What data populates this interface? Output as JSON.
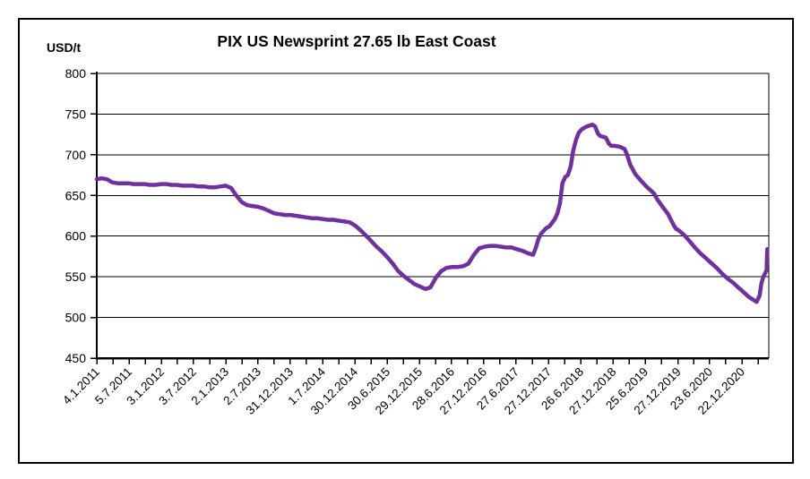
{
  "window": {
    "background": "#ffffff",
    "frame_border_color": "#000000"
  },
  "chart_data": {
    "type": "line",
    "title": "PIX US Newsprint 27.65 lb East Coast",
    "y_unit": "USD/t",
    "xlabel": "",
    "ylabel": "USD/t",
    "ylim": [
      450,
      800
    ],
    "y_ticks": [
      800,
      750,
      700,
      650,
      600,
      550,
      500,
      450
    ],
    "x_tick_labels": [
      "4.1.2011",
      "5.7.2011",
      "3.1.2012",
      "3.7.2012",
      "2.1.2013",
      "2.7.2013",
      "31.12.2013",
      "1.7.2014",
      "30.12.2014",
      "30.6.2015",
      "29.12.2015",
      "28.6.2016",
      "27.12.2016",
      "27.6.2017",
      "27.12.2017",
      "26.6.2018",
      "27.12.2018",
      "25.6.2019",
      "27.12.2019",
      "23.6.2020",
      "22.12.2020"
    ],
    "grid": "horizontal",
    "legend": "none",
    "line_color": "#7030A0",
    "axis_color": "#000000",
    "series": [
      {
        "name": "PIX US Newsprint 27.65 lb East Coast",
        "points": [
          [
            "4.1.2011",
            670
          ],
          [
            "1.2.2011",
            671
          ],
          [
            "1.3.2011",
            670
          ],
          [
            "1.4.2011",
            666
          ],
          [
            "1.5.2011",
            665
          ],
          [
            "1.6.2011",
            665
          ],
          [
            "1.7.2011",
            665
          ],
          [
            "1.8.2011",
            664
          ],
          [
            "1.9.2011",
            664
          ],
          [
            "1.10.2011",
            664
          ],
          [
            "1.11.2011",
            663
          ],
          [
            "1.12.2011",
            663
          ],
          [
            "1.1.2012",
            664
          ],
          [
            "1.2.2012",
            664
          ],
          [
            "1.3.2012",
            663
          ],
          [
            "1.4.2012",
            663
          ],
          [
            "1.5.2012",
            662
          ],
          [
            "1.6.2012",
            662
          ],
          [
            "1.7.2012",
            662
          ],
          [
            "1.8.2012",
            661
          ],
          [
            "1.9.2012",
            661
          ],
          [
            "1.10.2012",
            660
          ],
          [
            "1.11.2012",
            660
          ],
          [
            "1.12.2012",
            661
          ],
          [
            "1.1.2013",
            662
          ],
          [
            "1.2.2013",
            659
          ],
          [
            "1.3.2013",
            650
          ],
          [
            "1.4.2013",
            642
          ],
          [
            "1.5.2013",
            638
          ],
          [
            "1.6.2013",
            637
          ],
          [
            "1.7.2013",
            636
          ],
          [
            "1.8.2013",
            634
          ],
          [
            "1.9.2013",
            631
          ],
          [
            "1.10.2013",
            628
          ],
          [
            "1.11.2013",
            627
          ],
          [
            "1.12.2013",
            626
          ],
          [
            "1.1.2014",
            626
          ],
          [
            "1.2.2014",
            625
          ],
          [
            "1.3.2014",
            624
          ],
          [
            "1.4.2014",
            623
          ],
          [
            "1.5.2014",
            622
          ],
          [
            "1.6.2014",
            622
          ],
          [
            "1.7.2014",
            621
          ],
          [
            "1.8.2014",
            620
          ],
          [
            "1.9.2014",
            620
          ],
          [
            "1.10.2014",
            619
          ],
          [
            "1.11.2014",
            618
          ],
          [
            "1.12.2014",
            617
          ],
          [
            "1.1.2015",
            613
          ],
          [
            "1.2.2015",
            607
          ],
          [
            "1.3.2015",
            601
          ],
          [
            "1.4.2015",
            594
          ],
          [
            "1.5.2015",
            587
          ],
          [
            "1.6.2015",
            581
          ],
          [
            "1.7.2015",
            574
          ],
          [
            "1.8.2015",
            566
          ],
          [
            "1.9.2015",
            557
          ],
          [
            "1.10.2015",
            551
          ],
          [
            "1.11.2015",
            546
          ],
          [
            "1.12.2015",
            541
          ],
          [
            "1.1.2016",
            538
          ],
          [
            "1.2.2016",
            535
          ],
          [
            "1.3.2016",
            537
          ],
          [
            "1.4.2016",
            549
          ],
          [
            "1.5.2016",
            557
          ],
          [
            "1.6.2016",
            561
          ],
          [
            "1.7.2016",
            562
          ],
          [
            "1.8.2016",
            562
          ],
          [
            "1.9.2016",
            563
          ],
          [
            "1.10.2016",
            566
          ],
          [
            "1.11.2016",
            577
          ],
          [
            "1.12.2016",
            585
          ],
          [
            "1.1.2017",
            587
          ],
          [
            "1.2.2017",
            588
          ],
          [
            "1.3.2017",
            588
          ],
          [
            "1.4.2017",
            587
          ],
          [
            "1.5.2017",
            586
          ],
          [
            "1.6.2017",
            586
          ],
          [
            "1.7.2017",
            584
          ],
          [
            "1.8.2017",
            582
          ],
          [
            "1.9.2017",
            579
          ],
          [
            "1.10.2017",
            577
          ],
          [
            "15.10.2017",
            585
          ],
          [
            "1.11.2017",
            597
          ],
          [
            "15.11.2017",
            603
          ],
          [
            "1.12.2017",
            607
          ],
          [
            "15.12.2017",
            610
          ],
          [
            "1.1.2018",
            612
          ],
          [
            "1.2.2018",
            621
          ],
          [
            "15.2.2018",
            628
          ],
          [
            "1.3.2018",
            640
          ],
          [
            "15.3.2018",
            665
          ],
          [
            "1.4.2018",
            673
          ],
          [
            "15.4.2018",
            675
          ],
          [
            "1.5.2018",
            686
          ],
          [
            "15.5.2018",
            705
          ],
          [
            "1.6.2018",
            719
          ],
          [
            "15.6.2018",
            727
          ],
          [
            "1.7.2018",
            731
          ],
          [
            "15.7.2018",
            733
          ],
          [
            "1.8.2018",
            735
          ],
          [
            "1.9.2018",
            737
          ],
          [
            "15.9.2018",
            735
          ],
          [
            "1.10.2018",
            726
          ],
          [
            "15.10.2018",
            723
          ],
          [
            "1.11.2018",
            722
          ],
          [
            "15.11.2018",
            721
          ],
          [
            "1.12.2018",
            714
          ],
          [
            "15.12.2018",
            711
          ],
          [
            "1.1.2019",
            711
          ],
          [
            "1.2.2019",
            710
          ],
          [
            "1.3.2019",
            707
          ],
          [
            "15.3.2019",
            700
          ],
          [
            "1.4.2019",
            688
          ],
          [
            "1.5.2019",
            676
          ],
          [
            "1.6.2019",
            668
          ],
          [
            "15.6.2019",
            665
          ],
          [
            "1.7.2019",
            661
          ],
          [
            "1.8.2019",
            655
          ],
          [
            "15.8.2019",
            652
          ],
          [
            "1.9.2019",
            645
          ],
          [
            "1.10.2019",
            636
          ],
          [
            "1.11.2019",
            627
          ],
          [
            "15.11.2019",
            621
          ],
          [
            "1.12.2019",
            614
          ],
          [
            "15.12.2019",
            609
          ],
          [
            "1.1.2020",
            607
          ],
          [
            "1.2.2020",
            601
          ],
          [
            "1.3.2020",
            594
          ],
          [
            "1.4.2020",
            586
          ],
          [
            "1.5.2020",
            579
          ],
          [
            "1.6.2020",
            573
          ],
          [
            "1.7.2020",
            567
          ],
          [
            "1.8.2020",
            561
          ],
          [
            "1.9.2020",
            554
          ],
          [
            "1.10.2020",
            548
          ],
          [
            "1.11.2020",
            543
          ],
          [
            "1.12.2020",
            537
          ],
          [
            "22.12.2020",
            533
          ],
          [
            "1.1.2021",
            531
          ],
          [
            "1.2.2021",
            525
          ],
          [
            "1.3.2021",
            521
          ],
          [
            "15.3.2021",
            519
          ],
          [
            "1.4.2021",
            527
          ],
          [
            "10.4.2021",
            541
          ],
          [
            "20.4.2021",
            549
          ],
          [
            "1.5.2021",
            554
          ],
          [
            "10.5.2021",
            558
          ],
          [
            "14.5.2021",
            584
          ]
        ]
      }
    ]
  }
}
